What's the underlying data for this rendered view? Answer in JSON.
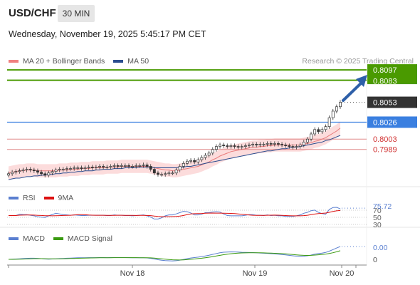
{
  "header": {
    "symbol": "USD/CHF",
    "interval": "30 MIN",
    "datetime": "Wednesday, November 19, 2025 5:45:17 PM CET"
  },
  "legend_main": [
    {
      "label": "MA 20 + Bollinger Bands",
      "color": "#f08080"
    },
    {
      "label": "MA 50",
      "color": "#2a4d8f"
    }
  ],
  "research": "Research © 2025 Trading Central",
  "price_levels": {
    "target_2": {
      "label": "0.8097",
      "value": 0.8097,
      "color": "#4a9a00"
    },
    "target_1": {
      "label": "0.8083",
      "value": 0.8083,
      "color": "#4a9a00"
    },
    "last": {
      "label": "0.8053",
      "value": 0.8053,
      "color": "#333333"
    },
    "pivot": {
      "label": "0.8026",
      "value": 0.8026,
      "color": "#3a7fe0"
    },
    "support_1": {
      "label": "0.8003",
      "value": 0.8003,
      "color": "#d03030"
    },
    "support_2": {
      "label": "0.7989",
      "value": 0.7989,
      "color": "#d03030"
    }
  },
  "rsi_panel": {
    "legend": [
      {
        "label": "RSI",
        "color": "#5a7fd0"
      },
      {
        "label": "9MA",
        "color": "#dd1111"
      }
    ],
    "value_label": "75.72",
    "levels": [
      "70",
      "50",
      "30"
    ]
  },
  "macd_panel": {
    "legend": [
      {
        "label": "MACD",
        "color": "#5a7fd0"
      },
      {
        "label": "MACD Signal",
        "color": "#3a9a10"
      }
    ],
    "value_label": "0.00",
    "zero_label": "0"
  },
  "x_axis": [
    "Nov 18",
    "Nov 19",
    "Nov 20"
  ],
  "chart_data": {
    "type": "candlestick",
    "title": "USD/CHF 30 MIN",
    "ylim": [
      0.795,
      0.81
    ],
    "x_ticks": [
      "Nov 18",
      "Nov 19",
      "Nov 20"
    ],
    "close_series": [
      0.7956,
      0.7958,
      0.7959,
      0.796,
      0.7961,
      0.7962,
      0.7961,
      0.796,
      0.7958,
      0.7956,
      0.7954,
      0.7957,
      0.7959,
      0.7961,
      0.7962,
      0.7962,
      0.7963,
      0.7963,
      0.7964,
      0.7964,
      0.7963,
      0.7964,
      0.7965,
      0.7964,
      0.7965,
      0.7966,
      0.7965,
      0.7965,
      0.7966,
      0.7967,
      0.7966,
      0.7967,
      0.7967,
      0.7966,
      0.7966,
      0.7967,
      0.7967,
      0.7968,
      0.7966,
      0.7962,
      0.7957,
      0.7955,
      0.7955,
      0.7956,
      0.7957,
      0.7957,
      0.7961,
      0.7966,
      0.797,
      0.7973,
      0.7974,
      0.7972,
      0.7975,
      0.7978,
      0.7981,
      0.7984,
      0.7989,
      0.7993,
      0.7995,
      0.7994,
      0.7993,
      0.7994,
      0.7993,
      0.7992,
      0.7993,
      0.7994,
      0.7995,
      0.7996,
      0.7995,
      0.7996,
      0.7996,
      0.7997,
      0.7996,
      0.7997,
      0.7996,
      0.7995,
      0.7994,
      0.7993,
      0.7992,
      0.7993,
      0.7995,
      0.7999,
      0.8003,
      0.801,
      0.8016,
      0.8013,
      0.8016,
      0.802,
      0.8032,
      0.8041,
      0.8047,
      0.8053
    ],
    "ma20_series": [
      0.7957,
      0.7958,
      0.7959,
      0.796,
      0.796,
      0.7961,
      0.7961,
      0.7961,
      0.796,
      0.796,
      0.796,
      0.796,
      0.796,
      0.796,
      0.7961,
      0.7961,
      0.7961,
      0.7962,
      0.7962,
      0.7962,
      0.7963,
      0.7963,
      0.7963,
      0.7964,
      0.7964,
      0.7964,
      0.7964,
      0.7965,
      0.7965,
      0.7965,
      0.7965,
      0.7966,
      0.7966,
      0.7966,
      0.7966,
      0.7966,
      0.7966,
      0.7966,
      0.7966,
      0.7965,
      0.7964,
      0.7963,
      0.7962,
      0.7961,
      0.7961,
      0.796,
      0.796,
      0.7961,
      0.7962,
      0.7963,
      0.7964,
      0.7965,
      0.7966,
      0.7968,
      0.797,
      0.7972,
      0.7975,
      0.7977,
      0.798,
      0.7982,
      0.7984,
      0.7986,
      0.7987,
      0.7988,
      0.7989,
      0.799,
      0.7991,
      0.7992,
      0.7992,
      0.7993,
      0.7993,
      0.7994,
      0.7994,
      0.7995,
      0.7995,
      0.7995,
      0.7995,
      0.7995,
      0.7995,
      0.7995,
      0.7995,
      0.7996,
      0.7997,
      0.7998,
      0.8,
      0.8001,
      0.8003,
      0.8005,
      0.8008,
      0.8011,
      0.8014,
      0.8018
    ],
    "ma50_series": [
      0.7948,
      0.7949,
      0.795,
      0.795,
      0.7951,
      0.7952,
      0.7952,
      0.7953,
      0.7953,
      0.7954,
      0.7954,
      0.7955,
      0.7955,
      0.7956,
      0.7956,
      0.7957,
      0.7957,
      0.7958,
      0.7958,
      0.7959,
      0.7959,
      0.796,
      0.796,
      0.796,
      0.7961,
      0.7961,
      0.7962,
      0.7962,
      0.7962,
      0.7963,
      0.7963,
      0.7963,
      0.7964,
      0.7964,
      0.7964,
      0.7964,
      0.7965,
      0.7965,
      0.7965,
      0.7965,
      0.7964,
      0.7964,
      0.7964,
      0.7964,
      0.7964,
      0.7964,
      0.7964,
      0.7965,
      0.7965,
      0.7966,
      0.7966,
      0.7967,
      0.7968,
      0.7969,
      0.797,
      0.7971,
      0.7972,
      0.7973,
      0.7974,
      0.7975,
      0.7976,
      0.7977,
      0.7978,
      0.7979,
      0.798,
      0.7981,
      0.7982,
      0.7983,
      0.7984,
      0.7985,
      0.7986,
      0.7987,
      0.7987,
      0.7988,
      0.7989,
      0.799,
      0.799,
      0.7991,
      0.7992,
      0.7992,
      0.7993,
      0.7994,
      0.7995,
      0.7996,
      0.7997,
      0.7998,
      0.7999,
      0.8001,
      0.8002,
      0.8004,
      0.8006,
      0.8008
    ]
  }
}
